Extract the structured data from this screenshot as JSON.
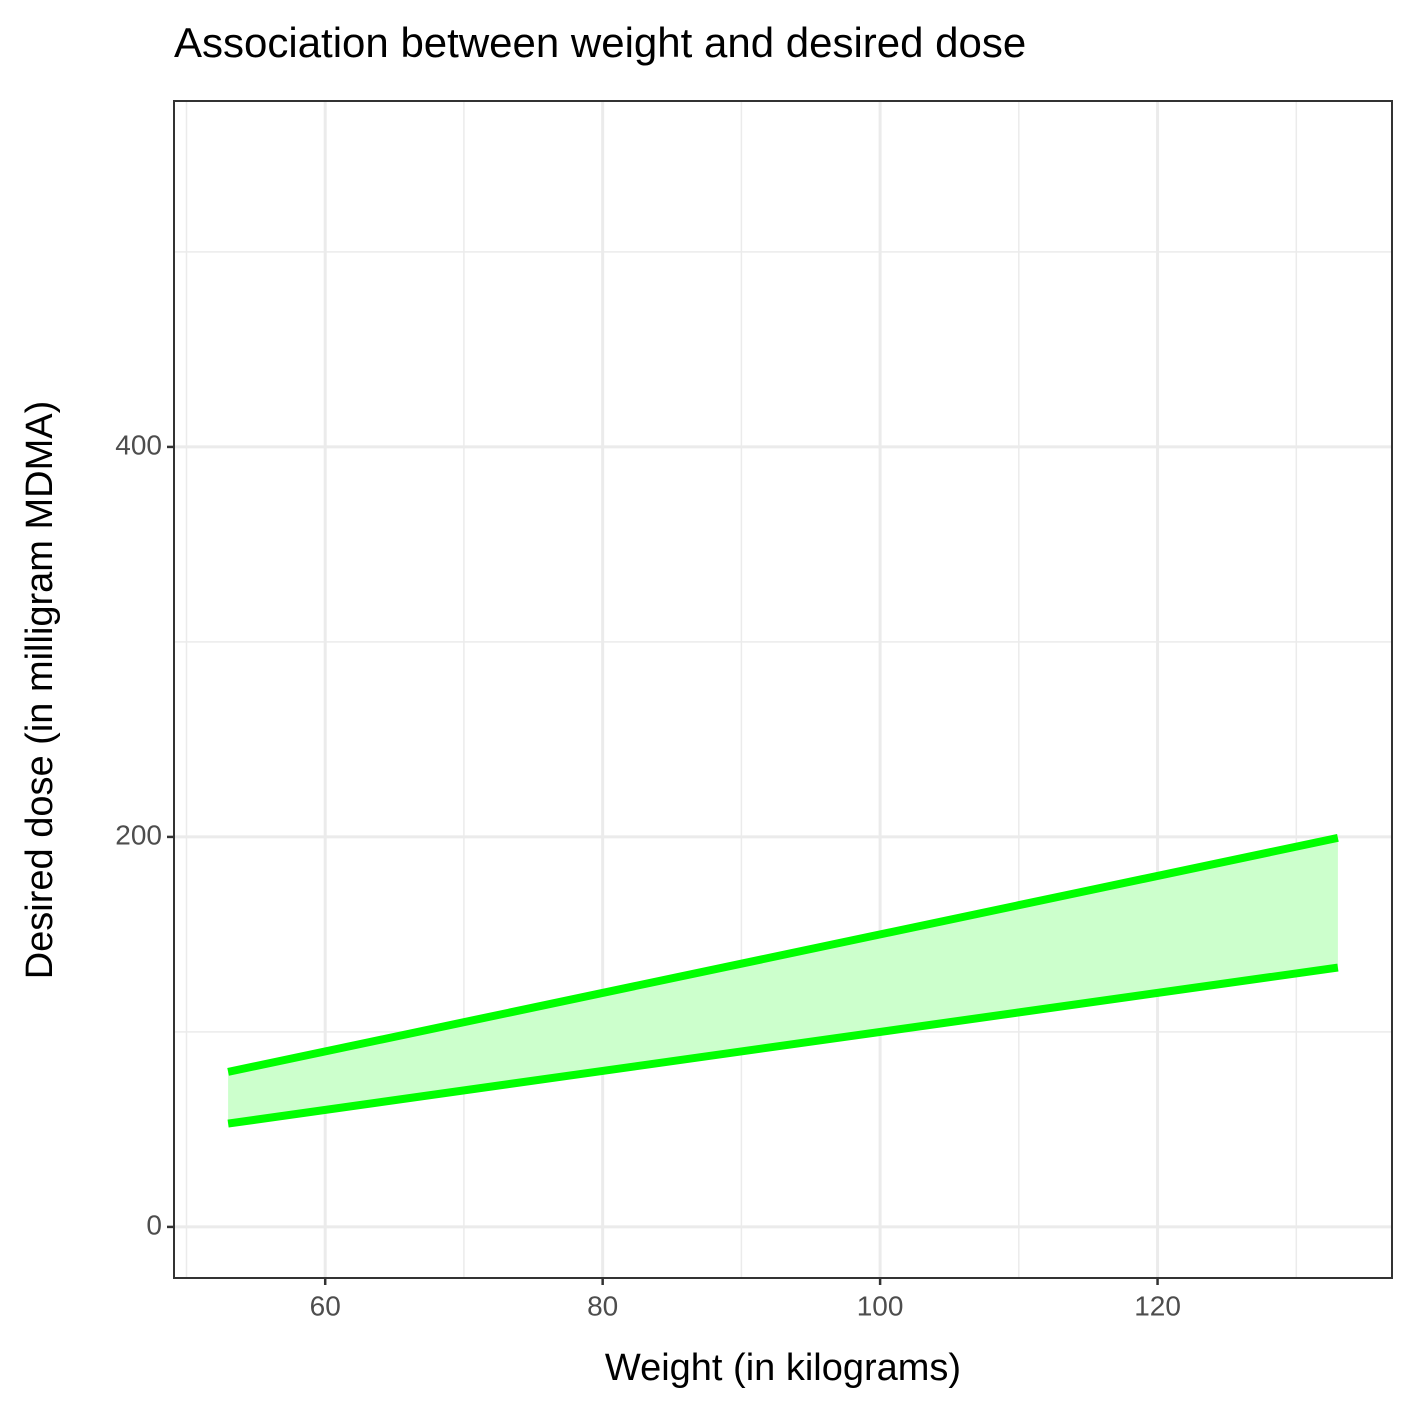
{
  "chart_data": {
    "type": "ribbon",
    "title": "Association between weight and desired dose",
    "x_label": "Weight (in kilograms)",
    "y_label": "Desired dose (in milligram MDMA)",
    "x": [
      53,
      133
    ],
    "series": [
      {
        "color": "#00ff00",
        "values": [
          53,
          133
        ]
      },
      {
        "color": "#00ff00",
        "values": [
          79.5,
          199.5
        ]
      }
    ],
    "fill": "#ccffcc",
    "xlim": [
      49.1,
      136.9
    ],
    "ylim": [
      -26.2,
      577.4
    ],
    "xticks": [
      60,
      80,
      100,
      120
    ],
    "yticks": [
      0,
      200,
      400
    ],
    "xminor": [
      50,
      70,
      90,
      110,
      130
    ],
    "yminor": [
      100,
      300,
      500
    ],
    "grid": true
  }
}
